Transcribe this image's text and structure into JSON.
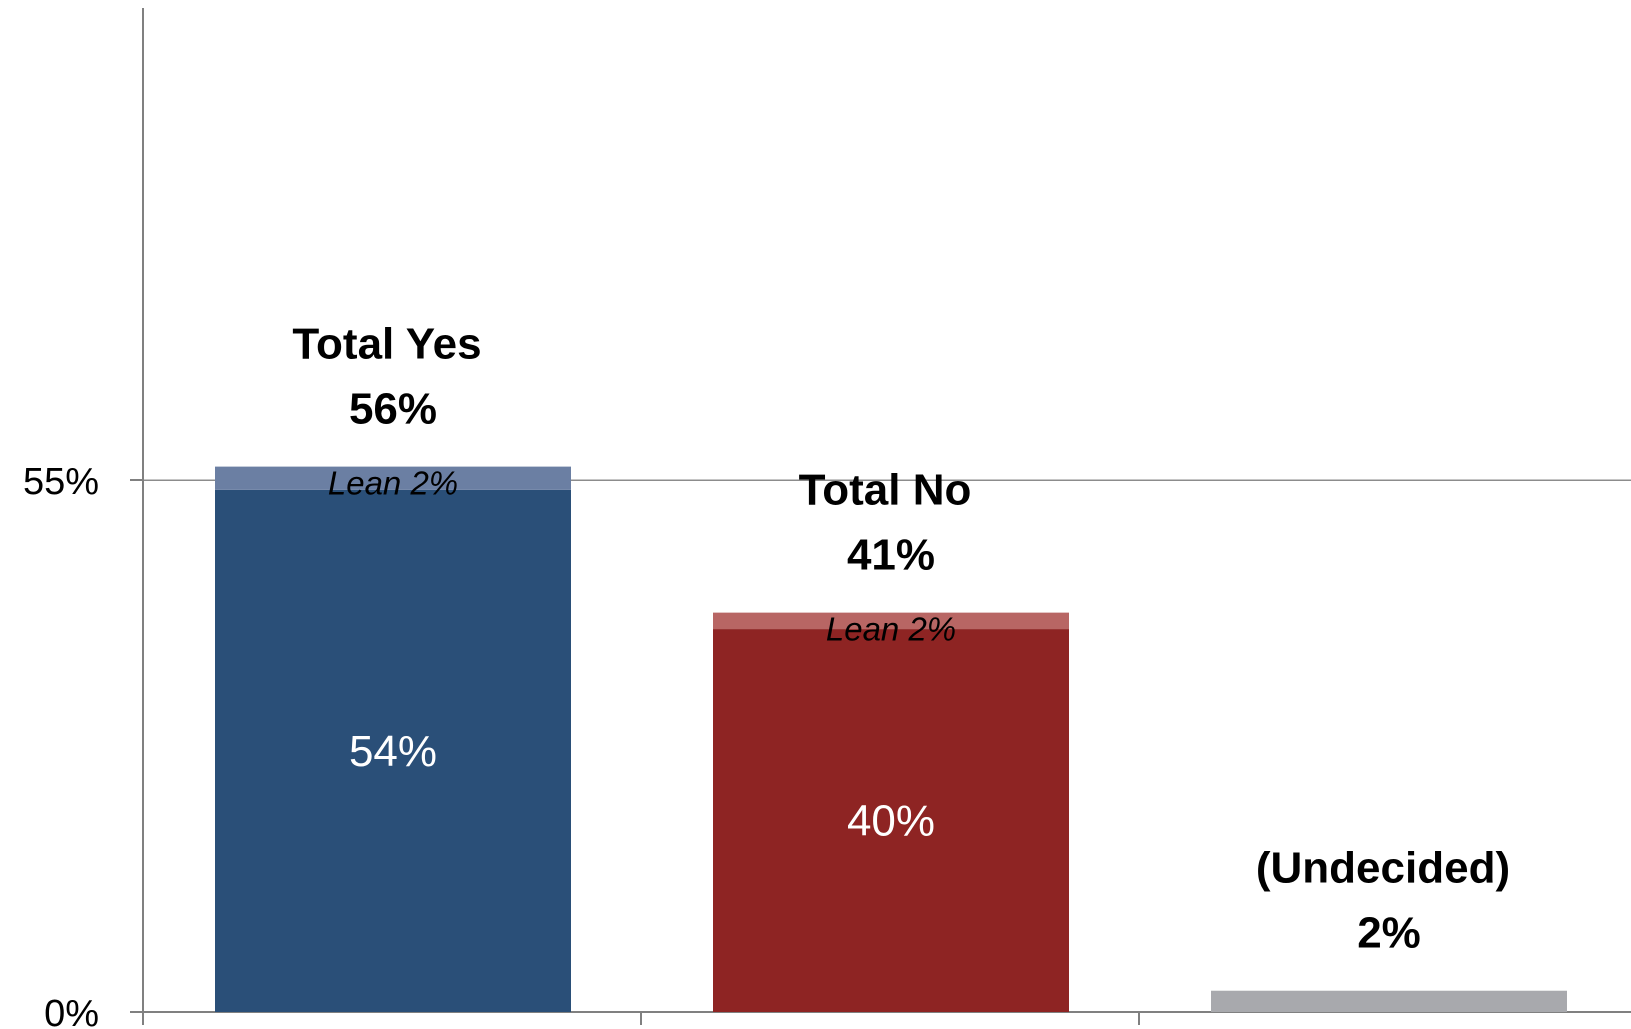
{
  "chart_data": {
    "type": "bar",
    "stacked": true,
    "ylim": [
      0,
      100
    ],
    "grid": true,
    "y_ticks": [
      {
        "value": 0,
        "label": "0%"
      },
      {
        "value": 55,
        "label": "55%"
      }
    ],
    "categories": [
      {
        "total_title": "Total Yes",
        "total_value": 56,
        "total_label": "56%",
        "lean_label": "Lean 2%",
        "inner_label": "54%",
        "segments": [
          {
            "value": 54,
            "color": "#2a4f78"
          },
          {
            "value": 2.4,
            "color": "#6b7fa3"
          }
        ]
      },
      {
        "total_title": "Total No",
        "total_value": 41,
        "total_label": "41%",
        "lean_label": "Lean 2%",
        "inner_label": "40%",
        "segments": [
          {
            "value": 39.6,
            "color": "#8e2423"
          },
          {
            "value": 1.7,
            "color": "#b86664"
          }
        ]
      },
      {
        "total_title": "(Undecided)",
        "total_value": 2,
        "total_label": "2%",
        "lean_label": "",
        "inner_label": "",
        "segments": [
          {
            "value": 2.2,
            "color": "#a8a9ad"
          }
        ]
      }
    ]
  }
}
